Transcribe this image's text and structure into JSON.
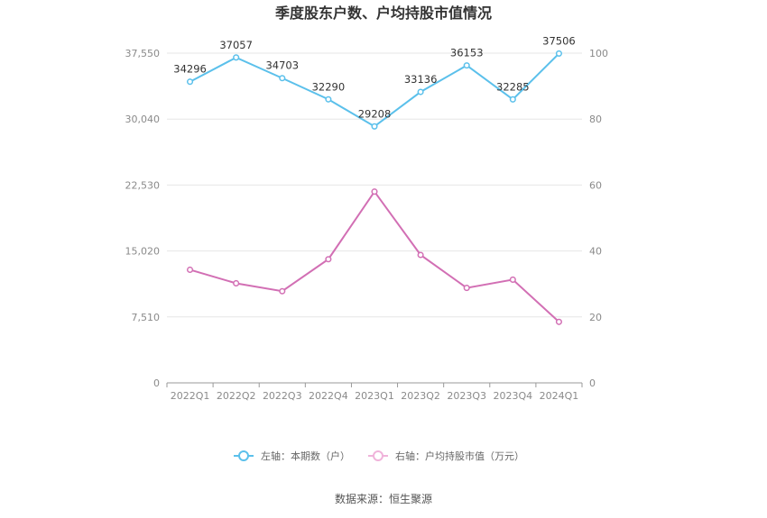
{
  "chart_data": {
    "type": "line",
    "title": "季度股东户数、户均持股市值情况",
    "categories": [
      "2022Q1",
      "2022Q2",
      "2022Q3",
      "2022Q4",
      "2023Q1",
      "2023Q2",
      "2023Q3",
      "2023Q4",
      "2024Q1"
    ],
    "left_axis": {
      "ticks": [
        "0",
        "7,510",
        "15,020",
        "22,530",
        "30,040",
        "37,550"
      ],
      "range": [
        0,
        37550
      ]
    },
    "right_axis": {
      "ticks": [
        "0",
        "20",
        "40",
        "60",
        "80",
        "100"
      ],
      "range": [
        0,
        100
      ]
    },
    "series": [
      {
        "name": "左轴：本期数（户）",
        "axis": "left",
        "color": "#5bc0eb",
        "values": [
          34296,
          37057,
          34703,
          32290,
          29208,
          33136,
          36153,
          32285,
          37506
        ],
        "labels": [
          "34296",
          "37057",
          "34703",
          "32290",
          "29208",
          "33136",
          "36153",
          "32285",
          "37506"
        ]
      },
      {
        "name": "右轴：户均持股市值（万元）",
        "axis": "right",
        "color": "#d26fb4",
        "values": [
          34.3,
          30.2,
          27.8,
          37.5,
          58.0,
          38.8,
          28.8,
          31.3,
          18.5
        ]
      }
    ],
    "grid": true,
    "legend_position": "bottom"
  },
  "footer": {
    "source": "数据来源：恒生聚源"
  }
}
